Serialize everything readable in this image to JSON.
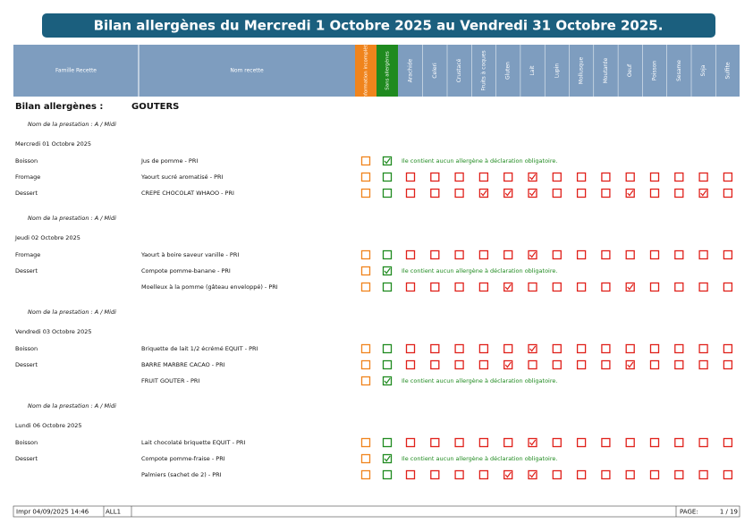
{
  "header": {
    "title": "Bilan allergènes du Mercredi 1 Octobre 2025 au Vendredi 31 Octobre 2025."
  },
  "table_header": {
    "family": "Famille Recette",
    "recipe": "Nom recette",
    "info": "Information incomplète",
    "sans": "Sans allergènes",
    "allergens": [
      "Arachide",
      "Celeri",
      "Crustacé",
      "Fruits à coques",
      "Gluten",
      "Lait",
      "Lupin",
      "Mollusque",
      "Moutarde",
      "Oeuf",
      "Poisson",
      "Sesame",
      "Soja",
      "Sulfite"
    ]
  },
  "section": {
    "label": "Bilan allergènes :",
    "name": "GOUTERS"
  },
  "days": [
    {
      "prestation": "Nom de la prestation :   A / Midi",
      "date": "Mercredi 01 Octobre 2025",
      "rows": [
        {
          "family": "Boisson",
          "recipe": "Jus de pomme  -  PRI",
          "sans": true,
          "message": "Ile contient aucun allergène à déclaration obligatoire."
        },
        {
          "family": "Fromage",
          "recipe": "Yaourt sucré aromatisé  -  PRI",
          "sans": false,
          "flags": [
            0,
            0,
            0,
            0,
            0,
            1,
            0,
            0,
            0,
            0,
            0,
            0,
            0,
            0
          ]
        },
        {
          "family": "Dessert",
          "recipe": "CREPE CHOCOLAT WHAOO  -  PRI",
          "sans": false,
          "flags": [
            0,
            0,
            0,
            1,
            1,
            1,
            0,
            0,
            0,
            1,
            0,
            0,
            1,
            0
          ]
        }
      ]
    },
    {
      "prestation": "Nom de la prestation :   A / Midi",
      "date": "Jeudi 02 Octobre 2025",
      "rows": [
        {
          "family": "Fromage",
          "recipe": "Yaourt à boire saveur vanille  -  PRI",
          "sans": false,
          "flags": [
            0,
            0,
            0,
            0,
            0,
            1,
            0,
            0,
            0,
            0,
            0,
            0,
            0,
            0
          ]
        },
        {
          "family": "Dessert",
          "recipe": "Compote pomme-banane  -  PRI",
          "sans": true,
          "message": "Ile contient aucun allergène à déclaration obligatoire."
        },
        {
          "recipe": "Moelleux à la pomme (gâteau enveloppé)  -  PRI",
          "sans": false,
          "flags": [
            0,
            0,
            0,
            0,
            1,
            0,
            0,
            0,
            0,
            1,
            0,
            0,
            0,
            0
          ]
        }
      ]
    },
    {
      "prestation": "Nom de la prestation :   A / Midi",
      "date": "Vendredi 03 Octobre 2025",
      "rows": [
        {
          "family": "Boisson",
          "recipe": "Briquette de lait 1/2 écrémé EQUIT  -  PRI",
          "sans": false,
          "flags": [
            0,
            0,
            0,
            0,
            0,
            1,
            0,
            0,
            0,
            0,
            0,
            0,
            0,
            0
          ]
        },
        {
          "family": "Dessert",
          "recipe": "BARRE MARBRE CACAO  -  PRI",
          "sans": false,
          "flags": [
            0,
            0,
            0,
            0,
            1,
            0,
            0,
            0,
            0,
            1,
            0,
            0,
            0,
            0
          ]
        },
        {
          "recipe": "FRUIT GOUTER  -  PRI",
          "sans": true,
          "message": "Ile contient aucun allergène à déclaration obligatoire."
        }
      ]
    },
    {
      "prestation": "Nom de la prestation :   A / Midi",
      "date": "Lundi 06 Octobre 2025",
      "rows": [
        {
          "family": "Boisson",
          "recipe": "Lait chocolaté briquette EQUIT  -  PRI",
          "sans": false,
          "flags": [
            0,
            0,
            0,
            0,
            0,
            1,
            0,
            0,
            0,
            0,
            0,
            0,
            0,
            0
          ]
        },
        {
          "family": "Dessert",
          "recipe": "Compote pomme-fraise  -  PRI",
          "sans": true,
          "message": "Ile contient aucun allergène à déclaration obligatoire."
        },
        {
          "recipe": "Palmiers (sachet de 2)  -  PRI",
          "sans": false,
          "flags": [
            0,
            0,
            0,
            0,
            1,
            1,
            0,
            0,
            0,
            0,
            0,
            0,
            0,
            0
          ]
        }
      ]
    }
  ],
  "footer": {
    "printed": "Impr  04/09/2025  14:46",
    "code": "ALL1",
    "page_label": "PAGE:",
    "page": "1 / 19"
  }
}
